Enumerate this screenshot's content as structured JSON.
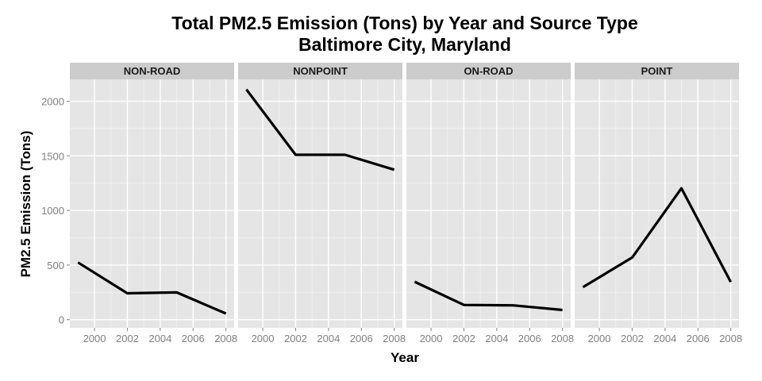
{
  "chart_data": {
    "type": "line",
    "title": "Total PM2.5 Emission (Tons) by Year and Source Type",
    "subtitle": "Baltimore City, Maryland",
    "xlabel": "Year",
    "ylabel": "PM2.5 Emission (Tons)",
    "xlim": [
      1998.5,
      2008.5
    ],
    "ylim": [
      -75,
      2200
    ],
    "x_ticks": [
      2000,
      2002,
      2004,
      2006,
      2008
    ],
    "x_tick_labels": [
      "2000",
      "2002",
      "2004",
      "2006",
      "2008"
    ],
    "y_ticks": [
      0,
      500,
      1000,
      1500,
      2000
    ],
    "y_tick_labels": [
      "0",
      "500",
      "1000",
      "1500",
      "2000"
    ],
    "grid": true,
    "legend": "none",
    "series_color": "#000000",
    "panel_background": "#e5e5e5",
    "strip_background": "#cccccc",
    "facets": [
      {
        "name": "NON-ROAD",
        "x": [
          1999,
          2002,
          2005,
          2008
        ],
        "y": [
          522.94,
          240.85,
          248.93,
          55.82
        ]
      },
      {
        "name": "NONPOINT",
        "x": [
          1999,
          2002,
          2005,
          2008
        ],
        "y": [
          2107.63,
          1509.5,
          1509.5,
          1373.21
        ]
      },
      {
        "name": "ON-ROAD",
        "x": [
          1999,
          2002,
          2005,
          2008
        ],
        "y": [
          346.82,
          134.31,
          130.43,
          88.28
        ]
      },
      {
        "name": "POINT",
        "x": [
          1999,
          2002,
          2005,
          2008
        ],
        "y": [
          296.8,
          569.26,
          1202.49,
          344.98
        ]
      }
    ]
  }
}
